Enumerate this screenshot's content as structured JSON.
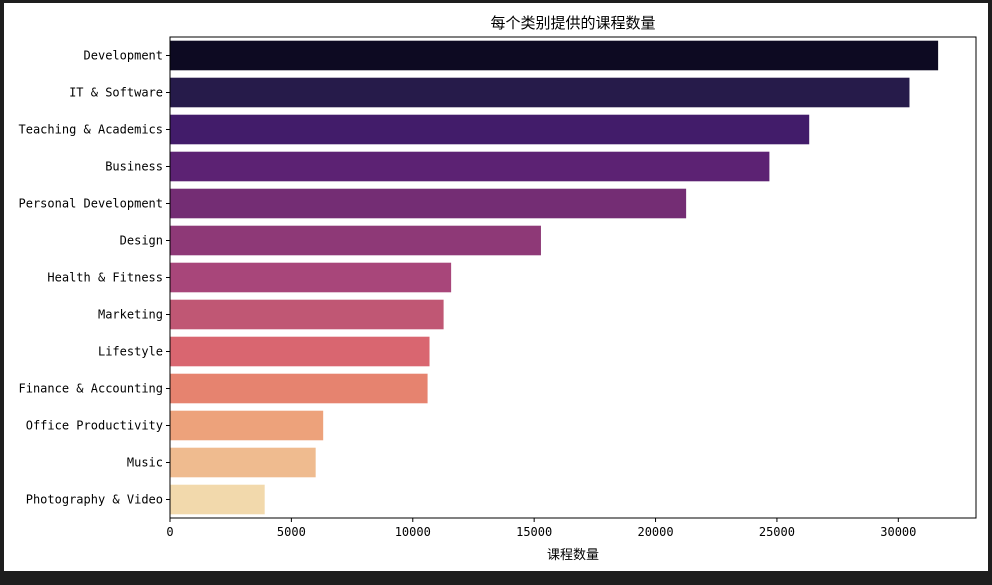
{
  "chart_data": {
    "type": "bar",
    "orientation": "horizontal",
    "title": "每个类别提供的课程数量",
    "xlabel": "课程数量",
    "ylabel": "",
    "xlim": [
      0,
      33200
    ],
    "xticks": [
      0,
      5000,
      10000,
      15000,
      20000,
      25000,
      30000
    ],
    "grid": false,
    "categories": [
      "Development",
      "IT & Software",
      "Teaching & Academics",
      "Business",
      "Personal Development",
      "Design",
      "Health & Fitness",
      "Marketing",
      "Lifestyle",
      "Finance & Accounting",
      "Office Productivity",
      "Music",
      "Photography & Video"
    ],
    "values": [
      31640,
      30460,
      26330,
      24690,
      21260,
      15280,
      11580,
      11270,
      10690,
      10610,
      6310,
      6000,
      3900
    ],
    "colors": [
      "#0d0a22",
      "#261b4a",
      "#421c6a",
      "#5c2273",
      "#742d74",
      "#8e3977",
      "#a8467a",
      "#c05774",
      "#d96670",
      "#e6836f",
      "#eda27b",
      "#efbb8f",
      "#f2d9ac"
    ]
  }
}
